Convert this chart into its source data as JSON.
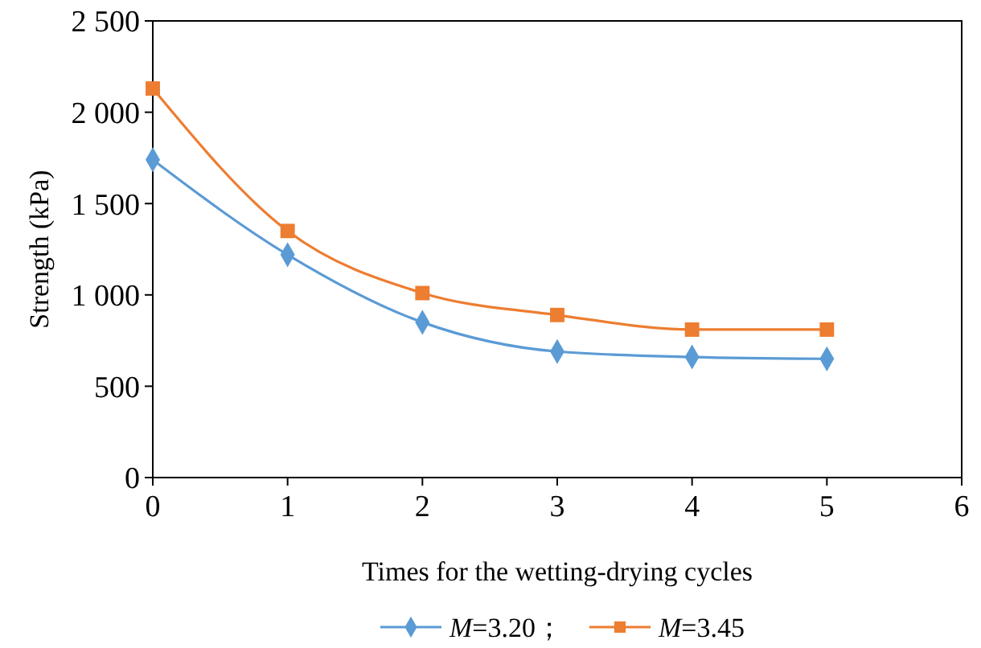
{
  "chart_data": {
    "type": "line",
    "xlabel": "Times for the wetting-drying cycles",
    "ylabel": "Strength (kPa)",
    "x": [
      0,
      1,
      2,
      3,
      4,
      5
    ],
    "xlim": [
      0,
      6
    ],
    "xticks": [
      0,
      1,
      2,
      3,
      4,
      5,
      6
    ],
    "ylim": [
      0,
      2500
    ],
    "yticks": [
      0,
      {
        "value": 500,
        "label": "500"
      },
      {
        "value": 1000,
        "label": "1 000"
      },
      {
        "value": 1500,
        "label": "1 500"
      },
      {
        "value": 2000,
        "label": "2 000"
      },
      {
        "value": 2500,
        "label": "2 500"
      }
    ],
    "grid": false,
    "legend": "bottom",
    "series": [
      {
        "name": "M=3.20；",
        "color": "#5b9bd5",
        "marker": "diamond",
        "values": [
          1740,
          1220,
          850,
          690,
          660,
          650
        ]
      },
      {
        "name": "M=3.45",
        "color": "#ed7d31",
        "marker": "square",
        "values": [
          2130,
          1350,
          1010,
          890,
          810,
          810
        ]
      }
    ]
  }
}
